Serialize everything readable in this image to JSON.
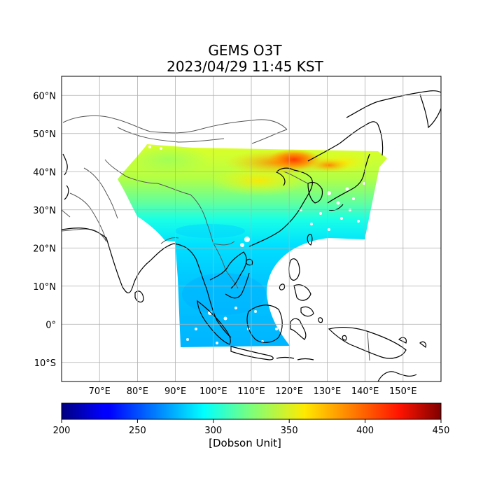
{
  "title": "GEMS O3T",
  "subtitle": "2023/04/29 11:45 KST",
  "map": {
    "lon_range": [
      60,
      160
    ],
    "lat_range": [
      -15,
      65
    ],
    "lon_ticks": [
      70,
      80,
      90,
      100,
      110,
      120,
      130,
      140,
      150
    ],
    "lon_tick_labels": [
      "70°E",
      "80°E",
      "90°E",
      "100°E",
      "110°E",
      "120°E",
      "130°E",
      "140°E",
      "150°E"
    ],
    "lat_ticks": [
      60,
      50,
      40,
      30,
      20,
      10,
      0,
      -10
    ],
    "lat_tick_labels": [
      "60°N",
      "50°N",
      "40°N",
      "30°N",
      "20°N",
      "10°N",
      "0°",
      "10°S"
    ],
    "grid": true,
    "coastline_color": "#000000",
    "border_color": "#555555"
  },
  "colorbar": {
    "min": 200,
    "max": 450,
    "ticks": [
      200,
      250,
      300,
      350,
      400,
      450
    ],
    "label": "[Dobson Unit]",
    "colormap": "jet"
  }
}
